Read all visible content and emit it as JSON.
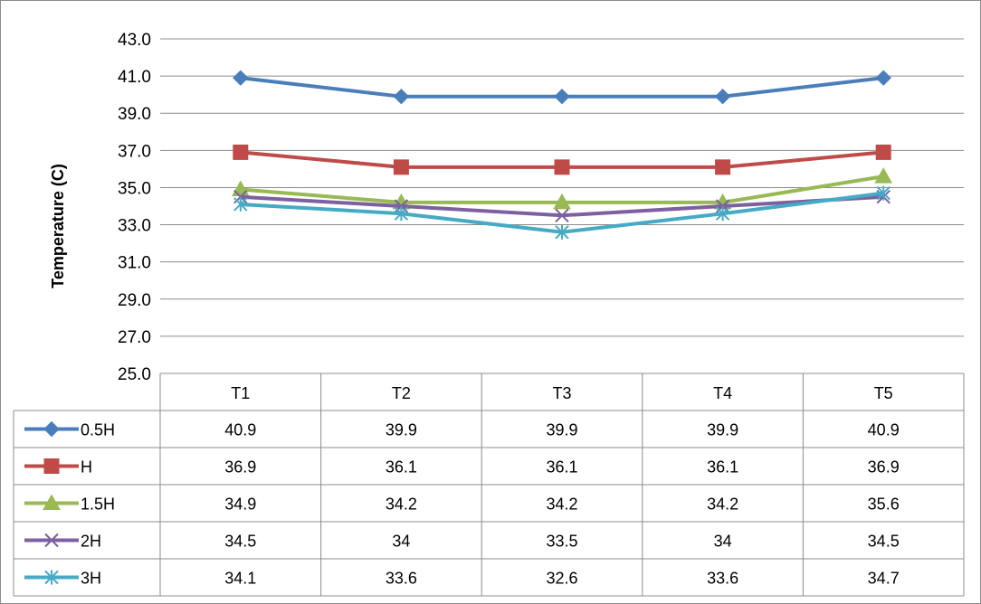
{
  "chart_data": {
    "type": "line",
    "title": "",
    "xlabel": "",
    "ylabel": "Temperature (C)",
    "categories": [
      "T1",
      "T2",
      "T3",
      "T4",
      "T5"
    ],
    "ylim": [
      25.0,
      43.0
    ],
    "yticks": [
      "25.0",
      "27.0",
      "29.0",
      "31.0",
      "33.0",
      "35.0",
      "37.0",
      "39.0",
      "41.0",
      "43.0"
    ],
    "grid": true,
    "legend": "data-table",
    "series": [
      {
        "name": "0.5H",
        "color": "#4a7ebb",
        "marker": "diamond",
        "values": [
          40.9,
          39.9,
          39.9,
          39.9,
          40.9
        ],
        "labels": [
          "40.9",
          "39.9",
          "39.9",
          "39.9",
          "40.9"
        ]
      },
      {
        "name": "H",
        "color": "#be4b48",
        "marker": "square",
        "values": [
          36.9,
          36.1,
          36.1,
          36.1,
          36.9
        ],
        "labels": [
          "36.9",
          "36.1",
          "36.1",
          "36.1",
          "36.9"
        ]
      },
      {
        "name": "1.5H",
        "color": "#98b954",
        "marker": "triangle",
        "values": [
          34.9,
          34.2,
          34.2,
          34.2,
          35.6
        ],
        "labels": [
          "34.9",
          "34.2",
          "34.2",
          "34.2",
          "35.6"
        ]
      },
      {
        "name": "2H",
        "color": "#7d60a0",
        "marker": "x",
        "values": [
          34.5,
          34,
          33.5,
          34,
          34.5
        ],
        "labels": [
          "34.5",
          "34",
          "33.5",
          "34",
          "34.5"
        ]
      },
      {
        "name": "3H",
        "color": "#46aac5",
        "marker": "star",
        "values": [
          34.1,
          33.6,
          32.6,
          33.6,
          34.7
        ],
        "labels": [
          "34.1",
          "33.6",
          "32.6",
          "33.6",
          "34.7"
        ]
      }
    ]
  }
}
